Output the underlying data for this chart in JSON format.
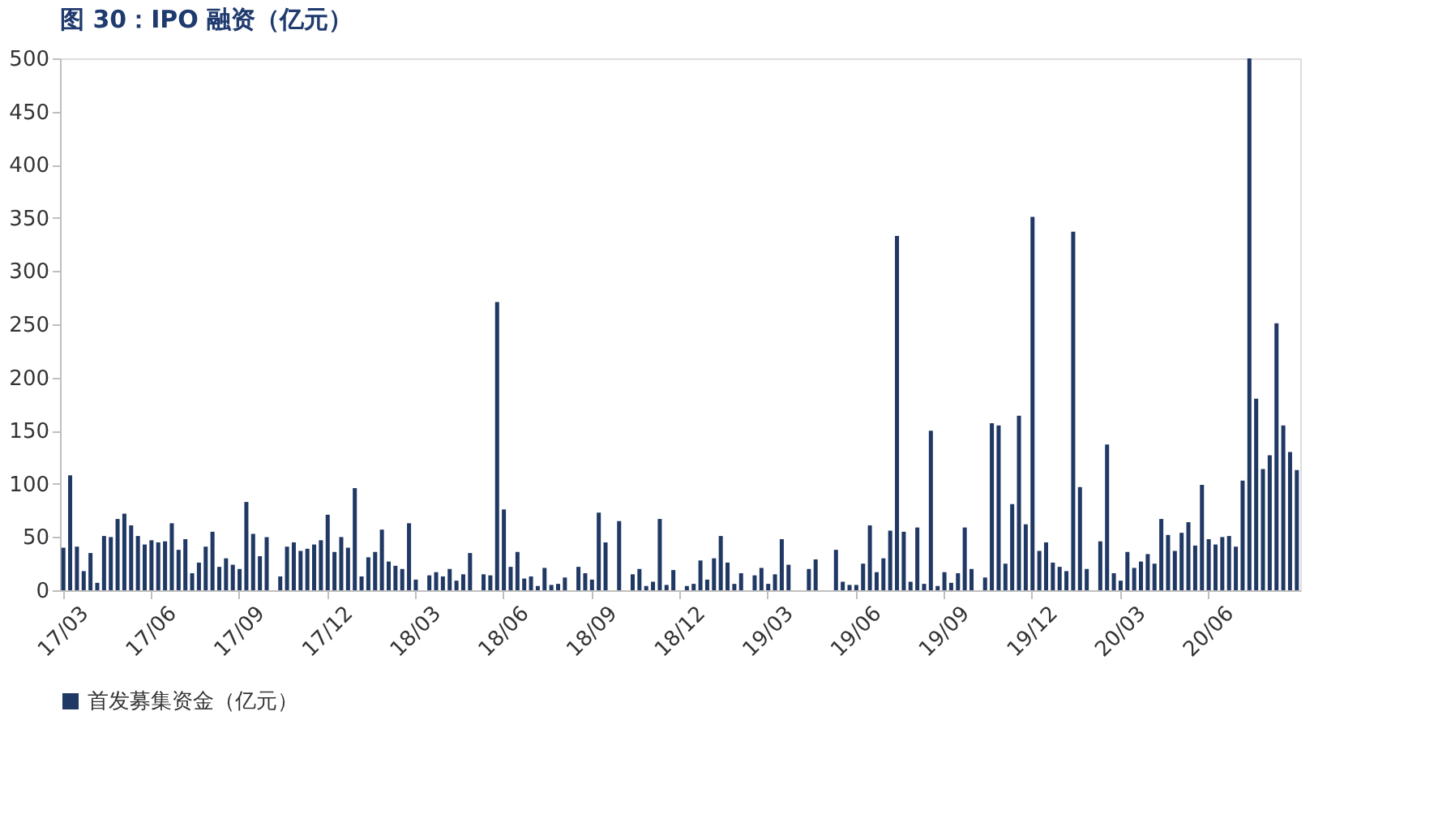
{
  "chart_data": {
    "type": "bar",
    "title": "图 30：IPO 融资（亿元）",
    "categories": [
      "17/03",
      null,
      null,
      null,
      null,
      null,
      null,
      null,
      null,
      null,
      null,
      null,
      null,
      "17/06",
      null,
      null,
      null,
      null,
      null,
      null,
      null,
      null,
      null,
      null,
      null,
      null,
      "17/09",
      null,
      null,
      null,
      null,
      null,
      null,
      null,
      null,
      null,
      null,
      null,
      null,
      "17/12",
      null,
      null,
      null,
      null,
      null,
      null,
      null,
      null,
      null,
      null,
      null,
      null,
      "18/03",
      null,
      null,
      null,
      null,
      null,
      null,
      null,
      null,
      null,
      null,
      null,
      null,
      "18/06",
      null,
      null,
      null,
      null,
      null,
      null,
      null,
      null,
      null,
      null,
      null,
      null,
      "18/09",
      null,
      null,
      null,
      null,
      null,
      null,
      null,
      null,
      null,
      null,
      null,
      null,
      "18/12",
      null,
      null,
      null,
      null,
      null,
      null,
      null,
      null,
      null,
      null,
      null,
      null,
      "19/03",
      null,
      null,
      null,
      null,
      null,
      null,
      null,
      null,
      null,
      null,
      null,
      null,
      "19/06",
      null,
      null,
      null,
      null,
      null,
      null,
      null,
      null,
      null,
      null,
      null,
      null,
      "19/09",
      null,
      null,
      null,
      null,
      null,
      null,
      null,
      null,
      null,
      null,
      null,
      null,
      "19/12",
      null,
      null,
      null,
      null,
      null,
      null,
      null,
      null,
      null,
      null,
      null,
      null,
      "20/03",
      null,
      null,
      null,
      null,
      null,
      null,
      null,
      null,
      null,
      null,
      null,
      null,
      "20/06",
      null,
      null,
      null,
      null,
      null,
      null,
      null,
      null,
      null,
      null,
      null,
      null,
      null
    ],
    "series": [
      {
        "name": "首发募集资金（亿元）",
        "color": "#203864",
        "values": [
          40,
          108,
          41,
          18,
          35,
          7,
          51,
          50,
          67,
          72,
          61,
          51,
          43,
          47,
          45,
          46,
          63,
          38,
          48,
          16,
          26,
          41,
          55,
          22,
          30,
          24,
          20,
          83,
          53,
          32,
          50,
          null,
          13,
          41,
          45,
          37,
          39,
          43,
          47,
          71,
          36,
          50,
          40,
          96,
          13,
          31,
          36,
          57,
          27,
          23,
          20,
          63,
          10,
          null,
          14,
          17,
          13,
          20,
          9,
          15,
          35,
          null,
          15,
          14,
          271,
          76,
          22,
          36,
          11,
          13,
          4,
          21,
          5,
          6,
          12,
          null,
          22,
          16,
          10,
          73,
          45,
          null,
          65,
          null,
          15,
          20,
          4,
          8,
          67,
          5,
          19,
          null,
          4,
          6,
          28,
          10,
          30,
          51,
          26,
          6,
          16,
          null,
          14,
          21,
          6,
          15,
          48,
          24,
          null,
          null,
          20,
          29,
          null,
          null,
          38,
          8,
          5,
          5,
          25,
          61,
          17,
          30,
          56,
          333,
          55,
          8,
          59,
          6,
          150,
          4,
          17,
          7,
          16,
          59,
          20,
          null,
          12,
          157,
          155,
          25,
          81,
          164,
          62,
          351,
          37,
          45,
          26,
          22,
          18,
          337,
          97,
          20,
          null,
          46,
          137,
          16,
          9,
          36,
          21,
          27,
          34,
          25,
          67,
          52,
          37,
          54,
          64,
          42,
          99,
          48,
          43,
          50,
          51,
          41,
          103,
          500,
          180,
          114,
          127,
          251,
          155,
          130,
          113
        ]
      }
    ],
    "ylim": [
      0,
      500
    ],
    "yticks": [
      0,
      50,
      100,
      150,
      200,
      250,
      300,
      350,
      400,
      450,
      500
    ],
    "grid": false,
    "legend": "bottom"
  }
}
